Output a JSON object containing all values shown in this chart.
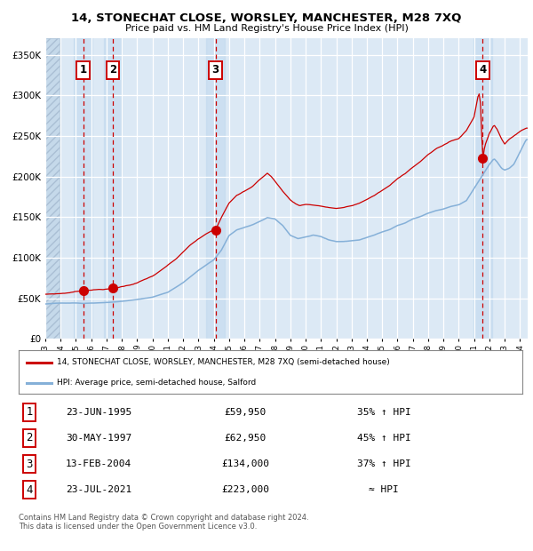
{
  "title": "14, STONECHAT CLOSE, WORSLEY, MANCHESTER, M28 7XQ",
  "subtitle": "Price paid vs. HM Land Registry's House Price Index (HPI)",
  "bg_color": "#dce9f5",
  "hatch_color": "#b0c8de",
  "grid_color": "#ffffff",
  "red_line_color": "#cc0000",
  "blue_line_color": "#85b0d8",
  "sale_marker_color": "#cc0000",
  "vline_color": "#cc0000",
  "purchases": [
    {
      "label": "1",
      "date_num": 1995.48,
      "price": 59950
    },
    {
      "label": "2",
      "date_num": 1997.41,
      "price": 62950
    },
    {
      "label": "3",
      "date_num": 2004.12,
      "price": 134000
    },
    {
      "label": "4",
      "date_num": 2021.56,
      "price": 223000
    }
  ],
  "legend_property_label": "14, STONECHAT CLOSE, WORSLEY, MANCHESTER, M28 7XQ (semi-detached house)",
  "legend_hpi_label": "HPI: Average price, semi-detached house, Salford",
  "footnote": "Contains HM Land Registry data © Crown copyright and database right 2024.\nThis data is licensed under the Open Government Licence v3.0.",
  "table_rows": [
    {
      "num": "1",
      "date": "23-JUN-1995",
      "price": "£59,950",
      "hpi": "35% ↑ HPI"
    },
    {
      "num": "2",
      "date": "30-MAY-1997",
      "price": "£62,950",
      "hpi": "45% ↑ HPI"
    },
    {
      "num": "3",
      "date": "13-FEB-2004",
      "price": "£134,000",
      "hpi": "37% ↑ HPI"
    },
    {
      "num": "4",
      "date": "23-JUL-2021",
      "price": "£223,000",
      "hpi": "≈ HPI"
    }
  ],
  "ylim": [
    0,
    370000
  ],
  "xlim_start": 1993.0,
  "xlim_end": 2024.5
}
